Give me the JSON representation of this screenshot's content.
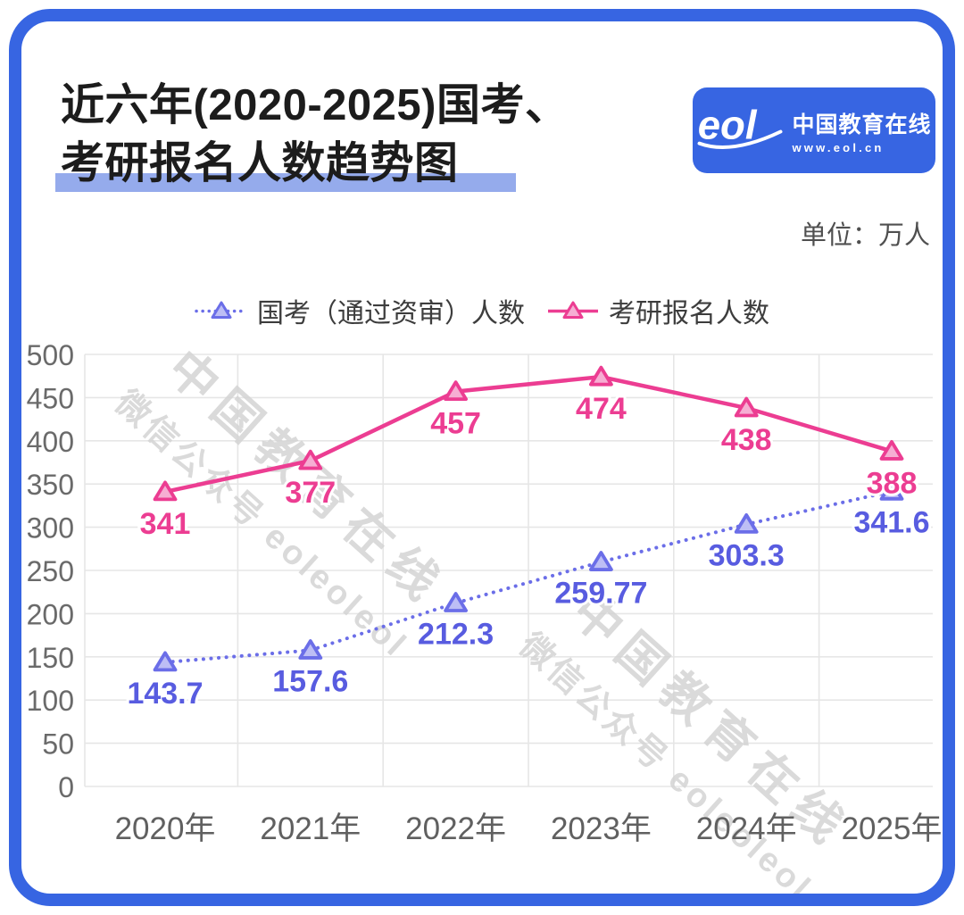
{
  "header": {
    "title_line1": "近六年(2020-2025)国考、",
    "title_line2": "考研报名人数趋势图",
    "logo": {
      "mark": "eol",
      "name": "中国教育在线",
      "url": "www.eol.cn"
    },
    "unit_label": "单位：万人"
  },
  "watermark": {
    "line1": "中国教育在线",
    "line2": "微信公众号 eoleoleol"
  },
  "colors": {
    "frame_blue": "#3765E2",
    "title_highlight": "#95ABEC",
    "grid": "#E6E6E6",
    "axis_text": "#6A6A6A",
    "xaxis_text": "#606060",
    "watermark": "#D4D4D4"
  },
  "chart_data": {
    "type": "line",
    "categories": [
      "2020年",
      "2021年",
      "2022年",
      "2023年",
      "2024年",
      "2025年"
    ],
    "series": [
      {
        "name": "国考（通过资审）人数",
        "style": "dotted",
        "color": "#6B6EE8",
        "marker_fill": "#BDBEF5",
        "label_color": "#585CE0",
        "values": [
          143.7,
          157.6,
          212.3,
          259.77,
          303.3,
          341.6
        ]
      },
      {
        "name": "考研报名人数",
        "style": "solid",
        "color": "#EC3D92",
        "marker_fill": "#F6AED3",
        "label_color": "#EC3D92",
        "values": [
          341,
          377,
          457,
          474,
          438,
          388
        ]
      }
    ],
    "ylim": [
      0,
      500
    ],
    "ytick_step": 50,
    "yticks": [
      0,
      50,
      100,
      150,
      200,
      250,
      300,
      350,
      400,
      450,
      500
    ],
    "unit": "万人",
    "grid": true,
    "legend_position": "top",
    "data_labels": true
  }
}
